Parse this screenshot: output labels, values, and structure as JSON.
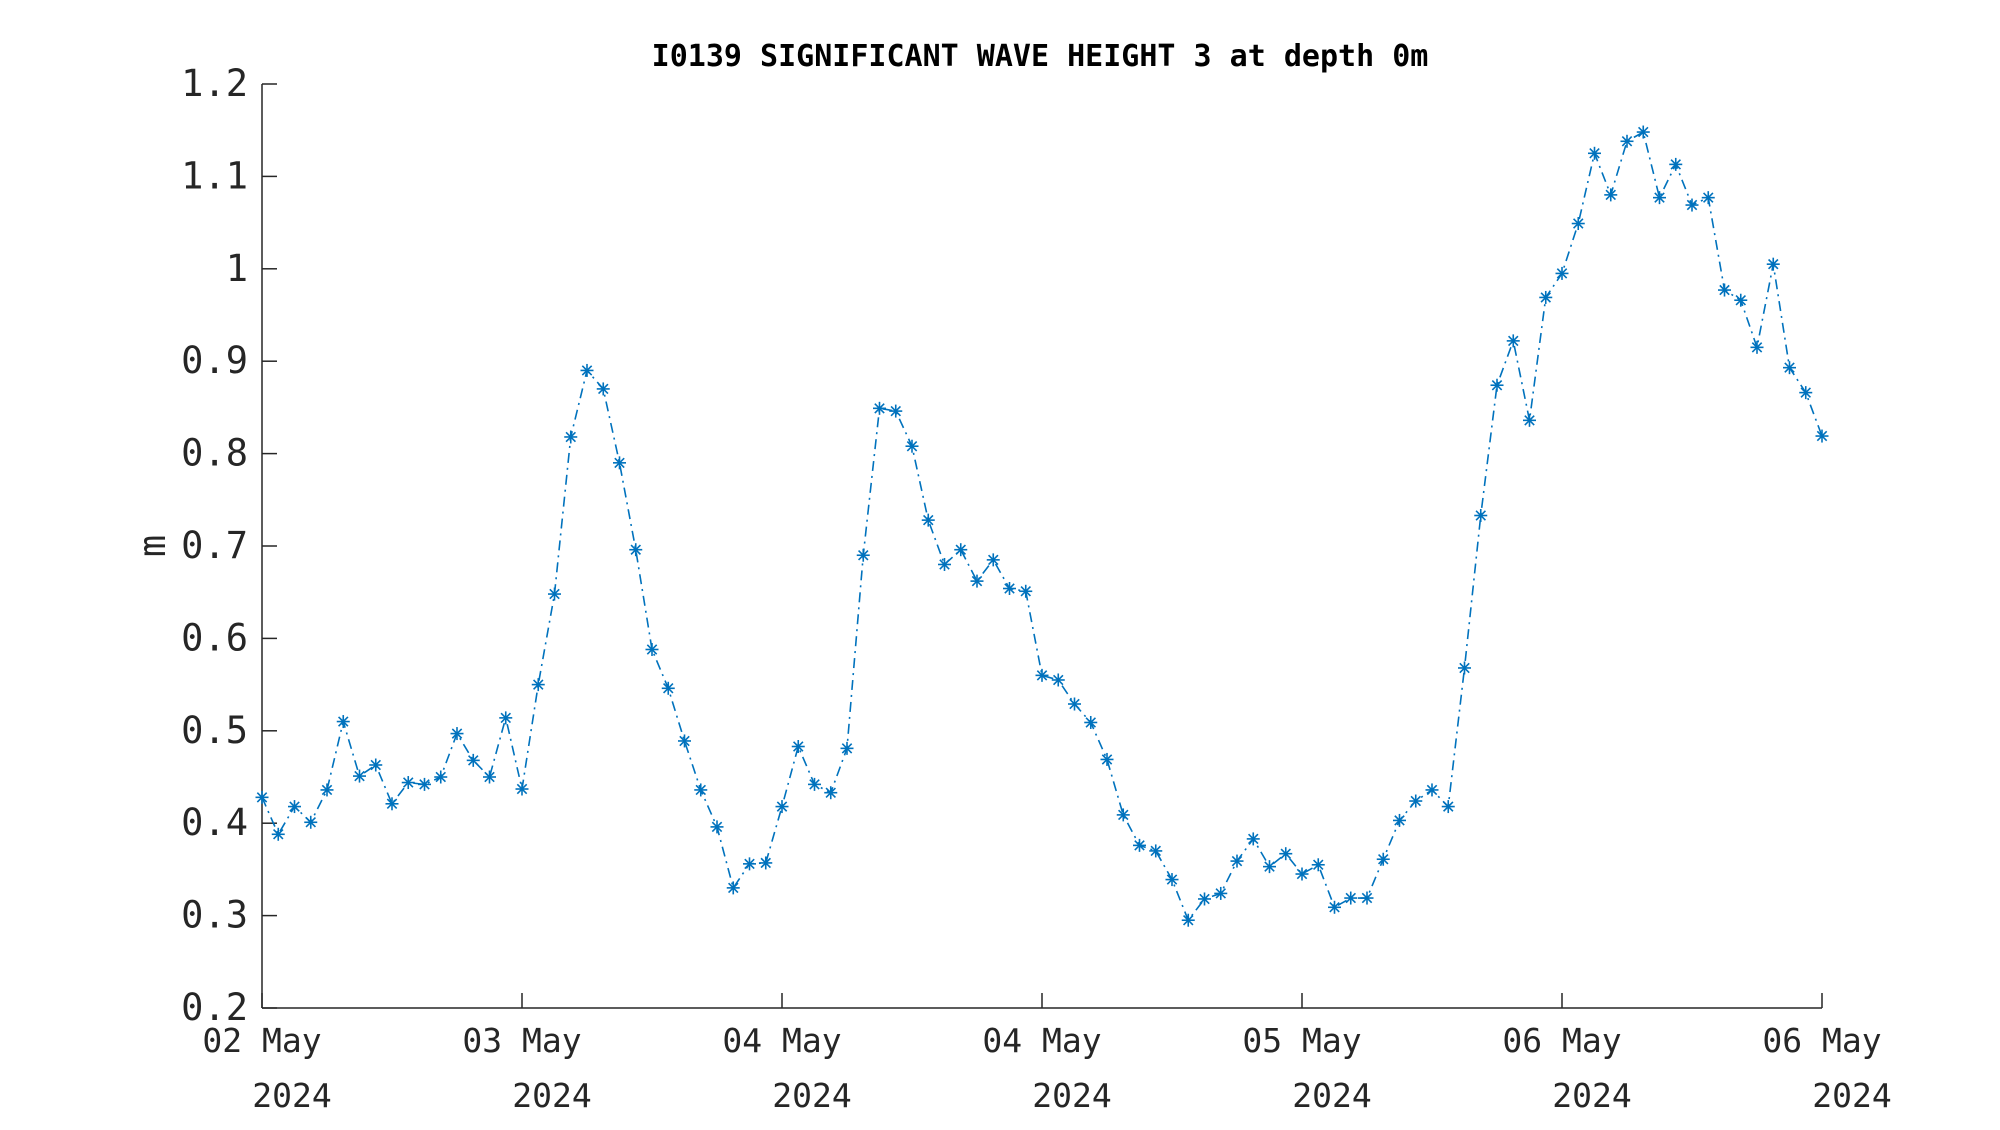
{
  "chart_data": {
    "type": "line",
    "title": "I0139 SIGNIFICANT WAVE HEIGHT 3 at depth 0m",
    "xlabel": "",
    "ylabel": "m",
    "ylim": [
      0.2,
      1.2
    ],
    "yticks": [
      "0.2",
      "0.3",
      "0.4",
      "0.5",
      "0.6",
      "0.7",
      "0.8",
      "0.9",
      "1",
      "1.1",
      "1.2"
    ],
    "xlim": [
      0,
      96
    ],
    "xticks": [
      {
        "at": 0,
        "line1": "02 May",
        "line2": "2024"
      },
      {
        "at": 16,
        "line1": "03 May",
        "line2": "2024"
      },
      {
        "at": 32,
        "line1": "04 May",
        "line2": "2024"
      },
      {
        "at": 48,
        "line1": "04 May",
        "line2": "2024"
      },
      {
        "at": 64,
        "line1": "05 May",
        "line2": "2024"
      },
      {
        "at": 80,
        "line1": "06 May",
        "line2": "2024"
      },
      {
        "at": 96,
        "line1": "06 May",
        "line2": "2024"
      }
    ],
    "grid": false,
    "legend": "none",
    "color": "#0072BD",
    "marker": "asterisk",
    "line_style": "dash-dot",
    "series": [
      {
        "name": "",
        "values": [
          0.428,
          0.388,
          0.418,
          0.401,
          0.436,
          0.51,
          0.451,
          0.463,
          0.421,
          0.444,
          0.442,
          0.45,
          0.497,
          0.468,
          0.45,
          0.514,
          0.437,
          0.55,
          0.648,
          0.818,
          0.89,
          0.87,
          0.79,
          0.696,
          0.588,
          0.546,
          0.489,
          0.436,
          0.396,
          0.33,
          0.356,
          0.357,
          0.418,
          0.483,
          0.442,
          0.433,
          0.481,
          0.69,
          0.849,
          0.846,
          0.808,
          0.728,
          0.68,
          0.696,
          0.662,
          0.685,
          0.654,
          0.651,
          0.56,
          0.555,
          0.529,
          0.509,
          0.469,
          0.409,
          0.376,
          0.37,
          0.339,
          0.295,
          0.318,
          0.324,
          0.359,
          0.383,
          0.353,
          0.367,
          0.345,
          0.355,
          0.309,
          0.319,
          0.319,
          0.361,
          0.403,
          0.424,
          0.436,
          0.418,
          0.568,
          0.733,
          0.874,
          0.922,
          0.836,
          0.969,
          0.995,
          1.049,
          1.125,
          1.08,
          1.138,
          1.148,
          1.077,
          1.113,
          1.069,
          1.077,
          0.977,
          0.966,
          0.915,
          1.005,
          0.893,
          0.866,
          0.819
        ]
      }
    ]
  }
}
